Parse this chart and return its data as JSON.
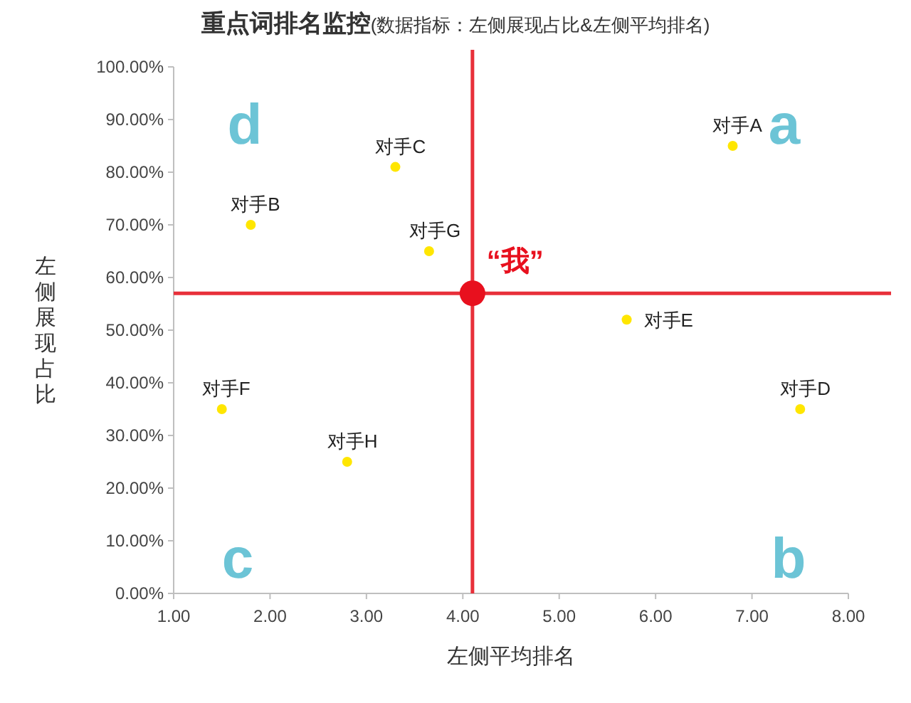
{
  "chart_data": {
    "type": "scatter",
    "title": "重点词排名监控",
    "subtitle": "(数据指标：左侧展现占比&左侧平均排名)",
    "xlabel": "左侧平均排名",
    "ylabel": "左侧展现占比",
    "xlim": [
      1,
      8
    ],
    "ylim": [
      0,
      100
    ],
    "xticks": [
      {
        "value": 1,
        "label": "1.00"
      },
      {
        "value": 2,
        "label": "2.00"
      },
      {
        "value": 3,
        "label": "3.00"
      },
      {
        "value": 4,
        "label": "4.00"
      },
      {
        "value": 5,
        "label": "5.00"
      },
      {
        "value": 6,
        "label": "6.00"
      },
      {
        "value": 7,
        "label": "7.00"
      },
      {
        "value": 8,
        "label": "8.00"
      }
    ],
    "yticks": [
      {
        "value": 0,
        "label": "0.00%"
      },
      {
        "value": 10,
        "label": "10.00%"
      },
      {
        "value": 20,
        "label": "20.00%"
      },
      {
        "value": 30,
        "label": "30.00%"
      },
      {
        "value": 40,
        "label": "40.00%"
      },
      {
        "value": 50,
        "label": "50.00%"
      },
      {
        "value": 60,
        "label": "60.00%"
      },
      {
        "value": 70,
        "label": "70.00%"
      },
      {
        "value": 80,
        "label": "80.00%"
      },
      {
        "value": 90,
        "label": "90.00%"
      },
      {
        "value": 100,
        "label": "100.00%"
      }
    ],
    "grid": false,
    "marker": "circle",
    "ref_lines": [
      {
        "axis": "x",
        "value": 4.1,
        "color": "#e8303a"
      },
      {
        "axis": "y",
        "value": 57,
        "color": "#e8303a"
      }
    ],
    "annotations": [
      "d",
      "a",
      "c",
      "b"
    ],
    "series": [
      {
        "name": "对手A",
        "color": "#ffe600",
        "x": [
          6.8
        ],
        "values": [
          85
        ]
      },
      {
        "name": "对手B",
        "color": "#ffe600",
        "x": [
          1.8
        ],
        "values": [
          70
        ]
      },
      {
        "name": "对手C",
        "color": "#ffe600",
        "x": [
          3.3
        ],
        "values": [
          81
        ]
      },
      {
        "name": "对手D",
        "color": "#ffe600",
        "x": [
          7.5
        ],
        "values": [
          35
        ]
      },
      {
        "name": "对手E",
        "color": "#ffe600",
        "x": [
          5.7
        ],
        "values": [
          52
        ]
      },
      {
        "name": "对手F",
        "color": "#ffe600",
        "x": [
          1.5
        ],
        "values": [
          35
        ]
      },
      {
        "name": "对手G",
        "color": "#ffe600",
        "x": [
          3.65
        ],
        "values": [
          65
        ]
      },
      {
        "name": "对手H",
        "color": "#ffe600",
        "x": [
          2.8
        ],
        "values": [
          25
        ]
      },
      {
        "name": "“我”",
        "color": "#e8101e",
        "type": "bubble",
        "x": [
          4.1
        ],
        "values": [
          57
        ],
        "sizes": [
          1
        ]
      }
    ]
  }
}
